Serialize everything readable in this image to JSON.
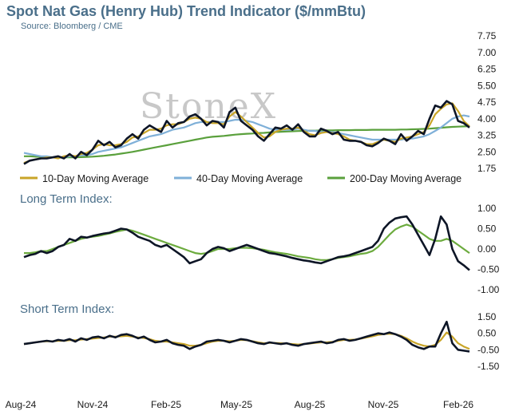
{
  "header": {
    "title": "Spot Nat Gas (Henry Hub) Trend Indicator ($/mmBtu)",
    "source": "Source: Bloomberg / CME"
  },
  "watermark": "StoneX",
  "colors": {
    "price": "#0d1526",
    "ma10": "#c9a528",
    "ma40": "#7fb0d8",
    "ma200": "#5aa03c",
    "long_index_ma": "#6cab3e",
    "short_index_ma": "#c9a528",
    "text": "#4a6f8a"
  },
  "chart_data": [
    {
      "type": "line",
      "title": "Spot Nat Gas (Henry Hub) Trend Indicator ($/mmBtu)",
      "ylim": [
        1.75,
        7.75
      ],
      "yticks": [
        "7.75",
        "7.00",
        "6.25",
        "5.50",
        "4.75",
        "4.00",
        "3.25",
        "2.50",
        "1.75"
      ],
      "xticks": [
        "Aug-24",
        "Nov-24",
        "Feb-25",
        "May-25",
        "Aug-25",
        "Nov-25",
        "Feb-26"
      ],
      "x": [
        0,
        1,
        2,
        3,
        4,
        5,
        6,
        7,
        8,
        9,
        10,
        11,
        12,
        13,
        14,
        15,
        16,
        17,
        18,
        19,
        20,
        21,
        22,
        23,
        24,
        25,
        26,
        27,
        28,
        29,
        30,
        31,
        32,
        33,
        34,
        35,
        36,
        37,
        38,
        39,
        40,
        41,
        42,
        43,
        44,
        45,
        46,
        47,
        48,
        49,
        50,
        51,
        52,
        53,
        54,
        55,
        56,
        57,
        58,
        59,
        60,
        61,
        62,
        63,
        64,
        65,
        66,
        67,
        68,
        69,
        70,
        71,
        72,
        73,
        74,
        75,
        76,
        77,
        78
      ],
      "legend": [
        "10-Day Moving Average",
        "40-Day Moving Average",
        "200-Day Moving Average"
      ],
      "series": [
        {
          "values": [
            1.95,
            2.1,
            2.15,
            2.2,
            2.2,
            2.25,
            2.3,
            2.2,
            2.4,
            2.2,
            2.5,
            2.35,
            2.6,
            3.0,
            2.8,
            2.95,
            2.7,
            2.8,
            3.1,
            3.3,
            3.1,
            3.5,
            3.7,
            3.55,
            3.4,
            3.9,
            3.6,
            3.8,
            3.85,
            4.1,
            4.2,
            4.0,
            3.7,
            3.9,
            3.85,
            3.6,
            4.3,
            4.5,
            3.9,
            3.7,
            3.5,
            3.2,
            3.0,
            3.3,
            3.6,
            3.55,
            3.7,
            3.5,
            3.75,
            3.4,
            3.2,
            3.2,
            3.55,
            3.45,
            3.3,
            3.4,
            3.05,
            3.0,
            3.0,
            2.95,
            2.8,
            2.75,
            2.9,
            3.1,
            3.0,
            2.85,
            3.3,
            3.0,
            3.2,
            3.45,
            3.3,
            4.0,
            4.6,
            4.5,
            4.8,
            4.65,
            3.9,
            3.8,
            3.6
          ]
        },
        {
          "name": "10-Day Moving Average",
          "values": [
            2.0,
            2.1,
            2.15,
            2.2,
            2.25,
            2.25,
            2.2,
            2.3,
            2.35,
            2.3,
            2.4,
            2.45,
            2.6,
            2.8,
            2.85,
            2.8,
            2.8,
            2.85,
            2.95,
            3.15,
            3.2,
            3.35,
            3.5,
            3.5,
            3.55,
            3.7,
            3.75,
            3.75,
            3.85,
            4.0,
            4.05,
            4.0,
            3.85,
            3.8,
            3.8,
            3.75,
            4.1,
            4.3,
            4.1,
            3.85,
            3.6,
            3.35,
            3.15,
            3.2,
            3.4,
            3.5,
            3.55,
            3.55,
            3.6,
            3.45,
            3.3,
            3.25,
            3.35,
            3.4,
            3.35,
            3.3,
            3.2,
            3.05,
            3.0,
            2.95,
            2.85,
            2.85,
            2.95,
            3.05,
            3.0,
            2.95,
            3.1,
            3.15,
            3.2,
            3.3,
            3.4,
            3.7,
            4.2,
            4.45,
            4.65,
            4.7,
            4.35,
            3.9,
            3.65
          ]
        },
        {
          "name": "40-Day Moving Average",
          "values": [
            2.45,
            2.4,
            2.35,
            2.3,
            2.3,
            2.25,
            2.25,
            2.25,
            2.3,
            2.3,
            2.35,
            2.35,
            2.4,
            2.5,
            2.55,
            2.6,
            2.65,
            2.7,
            2.8,
            2.9,
            3.0,
            3.1,
            3.2,
            3.25,
            3.3,
            3.4,
            3.5,
            3.55,
            3.6,
            3.7,
            3.8,
            3.85,
            3.85,
            3.85,
            3.85,
            3.85,
            3.9,
            3.95,
            3.95,
            3.9,
            3.85,
            3.75,
            3.65,
            3.55,
            3.5,
            3.5,
            3.5,
            3.5,
            3.55,
            3.5,
            3.45,
            3.45,
            3.4,
            3.4,
            3.4,
            3.35,
            3.3,
            3.25,
            3.2,
            3.15,
            3.1,
            3.05,
            3.05,
            3.05,
            3.05,
            3.05,
            3.05,
            3.1,
            3.1,
            3.15,
            3.2,
            3.3,
            3.45,
            3.6,
            3.8,
            4.0,
            4.1,
            4.15,
            4.1
          ]
        },
        {
          "name": "200-Day Moving Average",
          "values": [
            2.3,
            2.3,
            2.28,
            2.27,
            2.26,
            2.25,
            2.25,
            2.25,
            2.25,
            2.25,
            2.26,
            2.27,
            2.28,
            2.3,
            2.32,
            2.35,
            2.38,
            2.42,
            2.46,
            2.5,
            2.55,
            2.6,
            2.65,
            2.7,
            2.75,
            2.8,
            2.85,
            2.9,
            2.95,
            3.0,
            3.05,
            3.1,
            3.15,
            3.18,
            3.2,
            3.22,
            3.25,
            3.28,
            3.3,
            3.32,
            3.33,
            3.35,
            3.36,
            3.38,
            3.4,
            3.41,
            3.42,
            3.43,
            3.44,
            3.45,
            3.46,
            3.46,
            3.47,
            3.47,
            3.47,
            3.48,
            3.48,
            3.48,
            3.49,
            3.49,
            3.49,
            3.5,
            3.5,
            3.5,
            3.5,
            3.5,
            3.51,
            3.51,
            3.52,
            3.53,
            3.54,
            3.55,
            3.57,
            3.59,
            3.61,
            3.63,
            3.64,
            3.65,
            3.66
          ]
        }
      ]
    },
    {
      "type": "line",
      "title": "Long Term Index:",
      "ylim": [
        -1.0,
        1.0
      ],
      "yticks": [
        "1.00",
        "0.50",
        "0.00",
        "-0.50",
        "-1.00"
      ],
      "x": [
        0,
        1,
        2,
        3,
        4,
        5,
        6,
        7,
        8,
        9,
        10,
        11,
        12,
        13,
        14,
        15,
        16,
        17,
        18,
        19,
        20,
        21,
        22,
        23,
        24,
        25,
        26,
        27,
        28,
        29,
        30,
        31,
        32,
        33,
        34,
        35,
        36,
        37,
        38,
        39,
        40,
        41,
        42,
        43,
        44,
        45,
        46,
        47,
        48,
        49,
        50,
        51,
        52,
        53,
        54,
        55,
        56,
        57,
        58,
        59,
        60,
        61,
        62,
        63,
        64,
        65,
        66,
        67,
        68,
        69,
        70,
        71,
        72,
        73,
        74,
        75,
        76,
        77,
        78
      ],
      "series": [
        {
          "values": [
            -0.2,
            -0.15,
            -0.12,
            -0.05,
            -0.1,
            -0.05,
            0.05,
            0.1,
            0.25,
            0.2,
            0.3,
            0.28,
            0.32,
            0.35,
            0.38,
            0.4,
            0.45,
            0.5,
            0.48,
            0.4,
            0.3,
            0.25,
            0.2,
            0.1,
            0.05,
            0.1,
            0.0,
            -0.1,
            -0.2,
            -0.35,
            -0.3,
            -0.25,
            -0.1,
            0.0,
            0.05,
            0.02,
            -0.05,
            0.0,
            0.05,
            0.1,
            0.05,
            0.0,
            -0.05,
            -0.1,
            -0.12,
            -0.15,
            -0.18,
            -0.22,
            -0.25,
            -0.28,
            -0.3,
            -0.33,
            -0.35,
            -0.3,
            -0.25,
            -0.2,
            -0.18,
            -0.15,
            -0.1,
            -0.05,
            0.0,
            0.05,
            0.2,
            0.5,
            0.65,
            0.75,
            0.78,
            0.8,
            0.6,
            0.35,
            0.1,
            -0.15,
            0.25,
            0.8,
            0.6,
            0.0,
            -0.3,
            -0.4,
            -0.52
          ]
        },
        {
          "values": [
            -0.1,
            -0.1,
            -0.08,
            -0.05,
            -0.05,
            0.0,
            0.05,
            0.1,
            0.15,
            0.2,
            0.25,
            0.28,
            0.3,
            0.32,
            0.35,
            0.38,
            0.42,
            0.45,
            0.48,
            0.45,
            0.4,
            0.35,
            0.3,
            0.25,
            0.2,
            0.15,
            0.1,
            0.05,
            0.0,
            -0.05,
            -0.1,
            -0.12,
            -0.1,
            -0.05,
            0.0,
            0.0,
            0.0,
            0.02,
            0.03,
            0.03,
            0.02,
            0.0,
            -0.02,
            -0.05,
            -0.08,
            -0.1,
            -0.12,
            -0.15,
            -0.18,
            -0.2,
            -0.22,
            -0.25,
            -0.27,
            -0.27,
            -0.25,
            -0.22,
            -0.2,
            -0.18,
            -0.15,
            -0.12,
            -0.1,
            -0.05,
            0.05,
            0.2,
            0.35,
            0.48,
            0.55,
            0.6,
            0.55,
            0.45,
            0.35,
            0.25,
            0.2,
            0.2,
            0.25,
            0.2,
            0.1,
            0.0,
            -0.1
          ]
        }
      ]
    },
    {
      "type": "line",
      "title": "Short Term Index:",
      "ylim": [
        -1.5,
        1.5
      ],
      "yticks": [
        "1.50",
        "0.50",
        "-0.50",
        "-1.50"
      ],
      "xticks": [
        "Aug-24",
        "Nov-24",
        "Feb-25",
        "May-25",
        "Aug-25",
        "Nov-25",
        "Feb-26"
      ],
      "x": [
        0,
        1,
        2,
        3,
        4,
        5,
        6,
        7,
        8,
        9,
        10,
        11,
        12,
        13,
        14,
        15,
        16,
        17,
        18,
        19,
        20,
        21,
        22,
        23,
        24,
        25,
        26,
        27,
        28,
        29,
        30,
        31,
        32,
        33,
        34,
        35,
        36,
        37,
        38,
        39,
        40,
        41,
        42,
        43,
        44,
        45,
        46,
        47,
        48,
        49,
        50,
        51,
        52,
        53,
        54,
        55,
        56,
        57,
        58,
        59,
        60,
        61,
        62,
        63,
        64,
        65,
        66,
        67,
        68,
        69,
        70,
        71,
        72,
        73,
        74,
        75,
        76,
        77,
        78
      ],
      "series": [
        {
          "values": [
            -0.15,
            -0.1,
            -0.05,
            0.0,
            0.05,
            0.0,
            0.1,
            0.05,
            0.15,
            0.0,
            0.2,
            0.1,
            0.25,
            0.3,
            0.2,
            0.35,
            0.25,
            0.4,
            0.45,
            0.35,
            0.2,
            0.3,
            0.1,
            -0.05,
            0.0,
            0.1,
            -0.1,
            -0.2,
            -0.25,
            -0.45,
            -0.3,
            -0.2,
            0.0,
            0.05,
            0.1,
            0.05,
            -0.05,
            0.05,
            0.15,
            0.1,
            0.0,
            -0.1,
            -0.15,
            -0.05,
            -0.1,
            -0.15,
            -0.1,
            -0.2,
            -0.25,
            -0.15,
            -0.1,
            -0.05,
            0.0,
            -0.1,
            -0.05,
            0.1,
            0.15,
            0.05,
            0.1,
            0.2,
            0.3,
            0.4,
            0.5,
            0.45,
            0.55,
            0.45,
            0.3,
            0.1,
            -0.2,
            -0.35,
            -0.45,
            -0.3,
            -0.3,
            0.5,
            1.2,
            -0.1,
            -0.5,
            -0.55,
            -0.6
          ]
        },
        {
          "values": [
            -0.15,
            -0.1,
            -0.05,
            0.0,
            0.02,
            0.02,
            0.05,
            0.05,
            0.08,
            0.08,
            0.12,
            0.15,
            0.18,
            0.22,
            0.25,
            0.3,
            0.3,
            0.32,
            0.35,
            0.3,
            0.25,
            0.22,
            0.15,
            0.05,
            0.0,
            0.0,
            -0.05,
            -0.1,
            -0.15,
            -0.25,
            -0.25,
            -0.2,
            -0.1,
            0.0,
            0.05,
            0.05,
            0.02,
            0.05,
            0.1,
            0.08,
            0.02,
            -0.05,
            -0.1,
            -0.08,
            -0.08,
            -0.1,
            -0.12,
            -0.15,
            -0.18,
            -0.15,
            -0.12,
            -0.08,
            -0.05,
            -0.05,
            -0.02,
            0.05,
            0.1,
            0.1,
            0.12,
            0.18,
            0.25,
            0.32,
            0.4,
            0.45,
            0.48,
            0.45,
            0.35,
            0.2,
            0.0,
            -0.15,
            -0.25,
            -0.3,
            -0.2,
            0.1,
            0.55,
            0.3,
            -0.1,
            -0.3,
            -0.45
          ]
        }
      ]
    }
  ]
}
